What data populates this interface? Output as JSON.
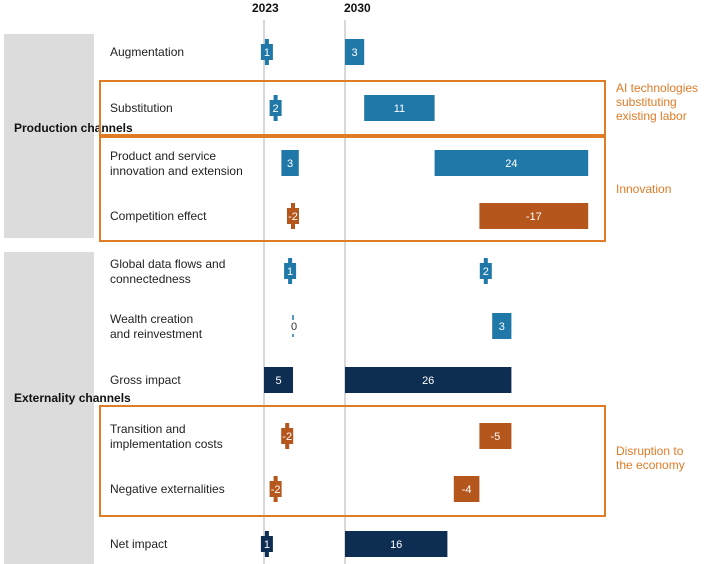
{
  "chart_data": {
    "type": "bar",
    "subtype": "waterfall",
    "years": [
      "2023",
      "2030"
    ],
    "channels": [
      "Production channels",
      "Externality channels"
    ],
    "rows": [
      {
        "label_lines": [
          "Augmentation"
        ],
        "v2023": 1,
        "v2030": 3,
        "kind": "positive"
      },
      {
        "label_lines": [
          "Substitution"
        ],
        "v2023": 2,
        "v2030": 11,
        "kind": "positive"
      },
      {
        "label_lines": [
          "Product and service",
          "innovation and extension"
        ],
        "v2023": 3,
        "v2030": 24,
        "kind": "positive"
      },
      {
        "label_lines": [
          "Competition effect"
        ],
        "v2023": -2,
        "v2030": -17,
        "kind": "negative"
      },
      {
        "label_lines": [
          "Global data flows and",
          "connectedness"
        ],
        "v2023": 1,
        "v2030": 2,
        "kind": "positive"
      },
      {
        "label_lines": [
          "Wealth creation",
          "and reinvestment"
        ],
        "v2023": 0,
        "v2030": 3,
        "kind": "positive"
      },
      {
        "label_lines": [
          "Gross impact"
        ],
        "v2023": 5,
        "v2030": 26,
        "kind": "total"
      },
      {
        "label_lines": [
          "Transition and",
          "implementation costs"
        ],
        "v2023": -2,
        "v2030": -5,
        "kind": "negative"
      },
      {
        "label_lines": [
          "Negative externalities"
        ],
        "v2023": -2,
        "v2030": -4,
        "kind": "negative"
      },
      {
        "label_lines": [
          "Net impact"
        ],
        "v2023": 1,
        "v2030": 16,
        "kind": "total"
      }
    ],
    "annotations": [
      {
        "lines": [
          "AI technologies",
          "substituting",
          "existing labor"
        ]
      },
      {
        "lines": [
          "Innovation"
        ]
      },
      {
        "lines": [
          "Disruption to",
          "the economy"
        ]
      }
    ],
    "colors": {
      "positive": "#1f78a8",
      "negative": "#b5561d",
      "total": "#0e2d52",
      "highlight_box": "#e07b27",
      "channel_panel": "#dcdcdc"
    }
  }
}
